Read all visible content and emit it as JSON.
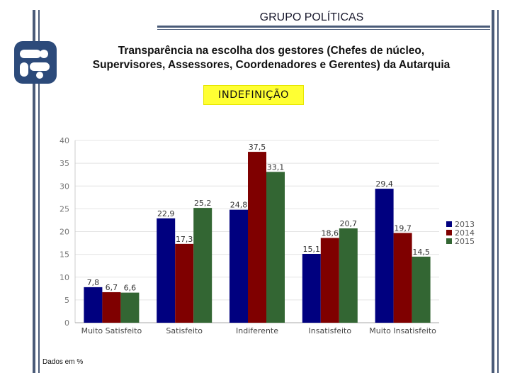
{
  "header": {
    "title": "GRUPO POLÍTICAS"
  },
  "slide": {
    "subtitle_line1": "Transparência na escolha dos gestores (Chefes de núcleo,",
    "subtitle_line2": "Supervisores, Assessores, Coordenadores e Gerentes) da Autarquia",
    "badge": "INDEFINIÇÃO",
    "footnote": "Dados em %"
  },
  "colors": {
    "accent": "#4a5b78",
    "logo": "#2c4a7a",
    "badge_bg": "#ffff33"
  },
  "chart_data": {
    "type": "bar",
    "categories": [
      "Muito Satisfeito",
      "Satisfeito",
      "Indiferente",
      "Insatisfeito",
      "Muito Insatisfeito"
    ],
    "series": [
      {
        "name": "2013",
        "color": "#00007f",
        "values": [
          7.8,
          22.9,
          24.8,
          15.1,
          29.4
        ],
        "labels": [
          "7,8",
          "22,9",
          "24,8",
          "15,1",
          "29,4"
        ]
      },
      {
        "name": "2014",
        "color": "#7f0000",
        "values": [
          6.7,
          17.3,
          37.5,
          18.6,
          19.7
        ],
        "labels": [
          "6,7",
          "17,3",
          "37,5",
          "18,6",
          "19,7"
        ]
      },
      {
        "name": "2015",
        "color": "#336633",
        "values": [
          6.6,
          25.2,
          33.1,
          20.7,
          14.5
        ],
        "labels": [
          "6,6",
          "25,2",
          "33,1",
          "20,7",
          "14,5"
        ]
      }
    ],
    "yticks": [
      0,
      5,
      10,
      15,
      20,
      25,
      30,
      35,
      40
    ],
    "ylim": [
      0,
      40
    ],
    "legend": "right",
    "title": "",
    "xlabel": "",
    "ylabel": ""
  }
}
